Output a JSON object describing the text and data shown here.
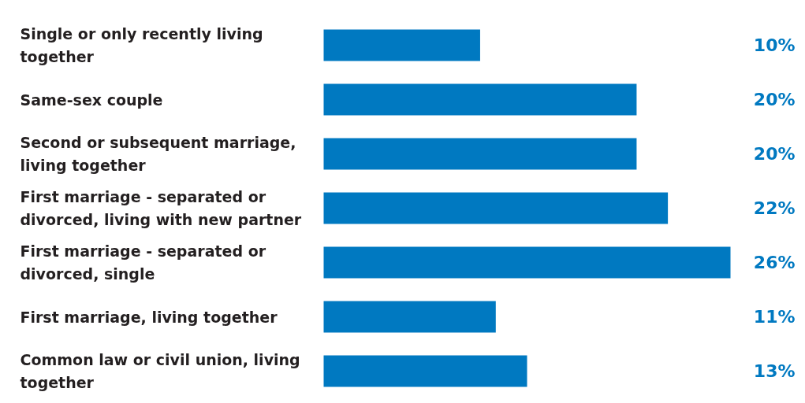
{
  "chart_data": {
    "type": "bar",
    "orientation": "horizontal",
    "categories": [
      "Single or only recently living together",
      "Same-sex couple",
      "Second or subsequent marriage, living together",
      "First marriage - separated or divorced, living with new partner",
      "First marriage - separated or divorced, single",
      "First marriage, living together",
      "Common law or civil union, living together"
    ],
    "values": [
      10,
      20,
      20,
      22,
      26,
      11,
      13
    ],
    "color": "#0079c1",
    "value_labels": [
      "10%",
      "20%",
      "20%",
      "22%",
      "26%",
      "11%",
      "13%"
    ],
    "grid": false
  }
}
